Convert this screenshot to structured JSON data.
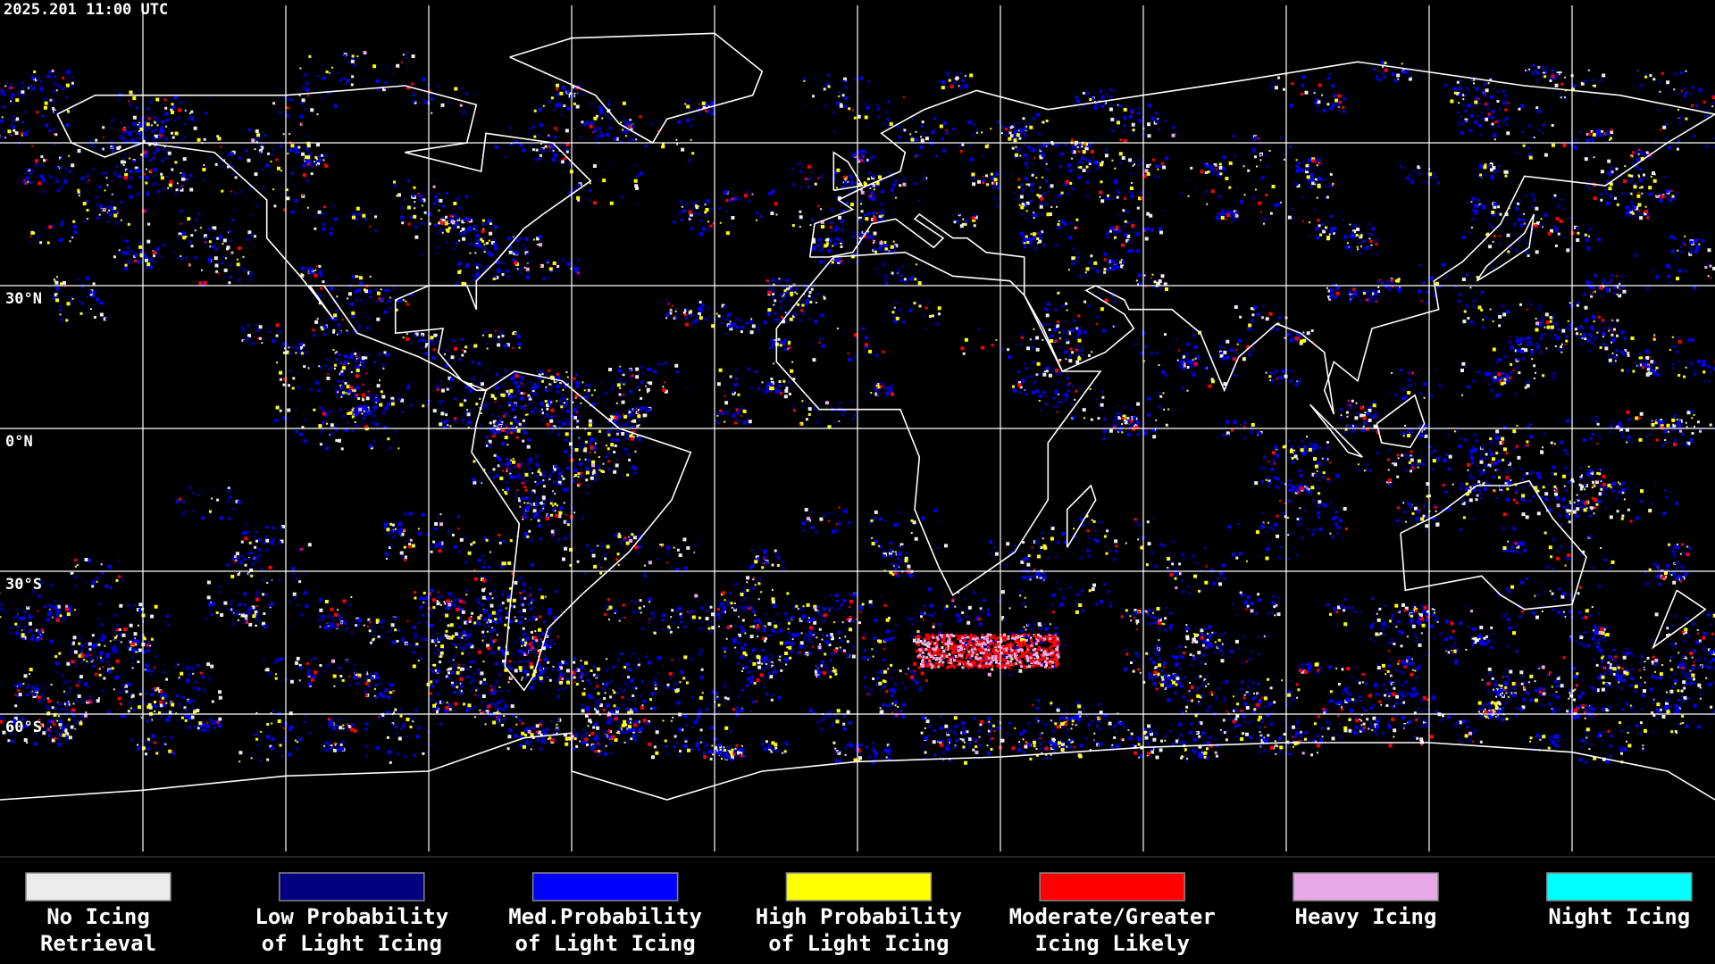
{
  "header": {
    "timestamp": "2025.201 11:00 UTC"
  },
  "map": {
    "latitude_labels": [
      "30°N",
      "0°N",
      "30°S",
      "60°S"
    ]
  },
  "legend": {
    "items": [
      {
        "label": [
          "No Icing",
          "Retrieval"
        ],
        "color": "#ececec"
      },
      {
        "label": [
          "Low Probability",
          "of Light Icing"
        ],
        "color": "#000080"
      },
      {
        "label": [
          "Med.Probability",
          "of Light Icing"
        ],
        "color": "#0000ff"
      },
      {
        "label": [
          "High Probability",
          "of Light Icing"
        ],
        "color": "#ffff00"
      },
      {
        "label": [
          "Moderate/Greater",
          "Icing Likely"
        ],
        "color": "#ff0000"
      },
      {
        "label": [
          "Heavy Icing"
        ],
        "color": "#e8a8e8"
      },
      {
        "label": [
          "Night Icing"
        ],
        "color": "#00ffff"
      }
    ]
  }
}
